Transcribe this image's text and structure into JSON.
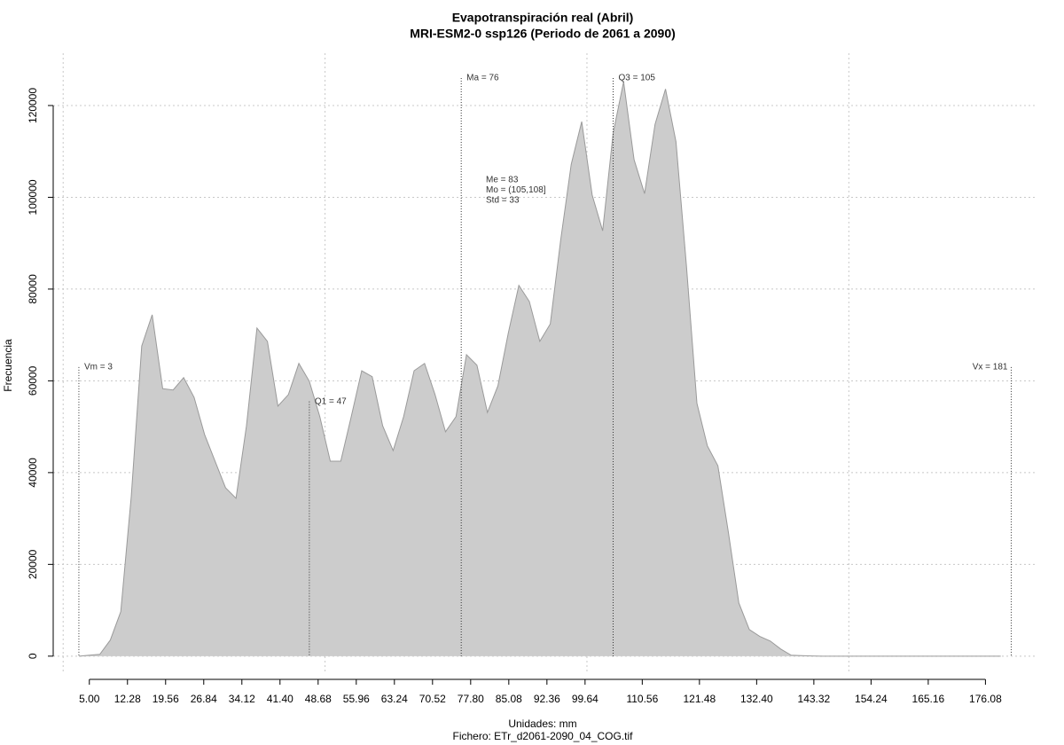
{
  "chart_data": {
    "type": "area",
    "title": "Evapotranspiración real (Abril)",
    "subtitle": "MRI-ESM2-0 ssp126 (Periodo de 2061 a 2090)",
    "x_label": "Unidades: mm",
    "y_label": "Frecuencia",
    "footer": "Fichero: ETr_d2061-2090_04_COG.tif",
    "x": [
      3,
      5,
      7,
      9,
      11,
      13,
      15,
      17,
      19,
      21,
      23,
      25,
      27,
      29,
      31,
      33,
      35,
      37,
      39,
      41,
      43,
      45,
      47,
      49,
      51,
      53,
      55,
      57,
      59,
      61,
      63,
      65,
      67,
      69,
      71,
      73,
      75,
      77,
      79,
      81,
      83,
      85,
      87,
      89,
      91,
      93,
      95,
      97,
      99,
      101,
      103,
      105,
      107,
      109,
      111,
      113,
      115,
      117,
      119,
      121,
      123,
      125,
      127,
      129,
      131,
      133,
      135,
      137,
      139,
      141,
      143,
      145,
      179
    ],
    "series": [
      {
        "color": "#cccccc",
        "values": [
          0,
          200,
          400,
          3500,
          9700,
          34800,
          67600,
          74400,
          58300,
          58000,
          60700,
          56400,
          48300,
          42500,
          36700,
          34400,
          50200,
          71500,
          68600,
          54500,
          57000,
          63800,
          59900,
          52200,
          42500,
          42500,
          52200,
          62200,
          60900,
          50200,
          44800,
          52200,
          62200,
          63800,
          57000,
          48900,
          52200,
          65700,
          63400,
          53100,
          58900,
          70500,
          80800,
          77300,
          68600,
          72400,
          90800,
          107200,
          116500,
          100500,
          92700,
          114000,
          125200,
          108200,
          100800,
          115900,
          123600,
          112100,
          85000,
          55100,
          45800,
          41500,
          27000,
          11600,
          5800,
          4300,
          3300,
          1550,
          200,
          100,
          50,
          0,
          0
        ]
      }
    ],
    "xlim": [
      -1.9,
      186
    ],
    "ylim": [
      -3900,
      131400
    ],
    "xticks": [
      {
        "value": 5,
        "label": "5.00"
      },
      12.28,
      19.56,
      26.84,
      34.12,
      {
        "value": 41.4,
        "label": "41.40"
      },
      48.68,
      55.96,
      63.24,
      70.52,
      {
        "value": 77.8,
        "label": "77.80"
      },
      85.08,
      92.36,
      99.64,
      110.56,
      121.48,
      {
        "value": 132.4,
        "label": "132.40"
      },
      143.32,
      154.24,
      165.16,
      176.08
    ],
    "yticks": [
      0,
      20000,
      40000,
      60000,
      80000,
      100000,
      120000
    ],
    "xgrid": [
      0,
      50,
      100,
      150
    ],
    "grid": true,
    "annotations": [
      {
        "label": "Vm = 3",
        "x": 3,
        "y": 63000
      },
      {
        "label": "Q1 = 47",
        "x": 47,
        "y": 55500
      },
      {
        "label": "Ma = 76",
        "x": 76,
        "y": 126000
      },
      {
        "label": "Q3 = 105",
        "x": 105,
        "y": 126000
      },
      {
        "label": "Vx = 181",
        "x": 181,
        "y": 63000
      }
    ],
    "stats": [
      "Me = 83",
      "Mo = (105,108]",
      "Std = 33"
    ]
  }
}
